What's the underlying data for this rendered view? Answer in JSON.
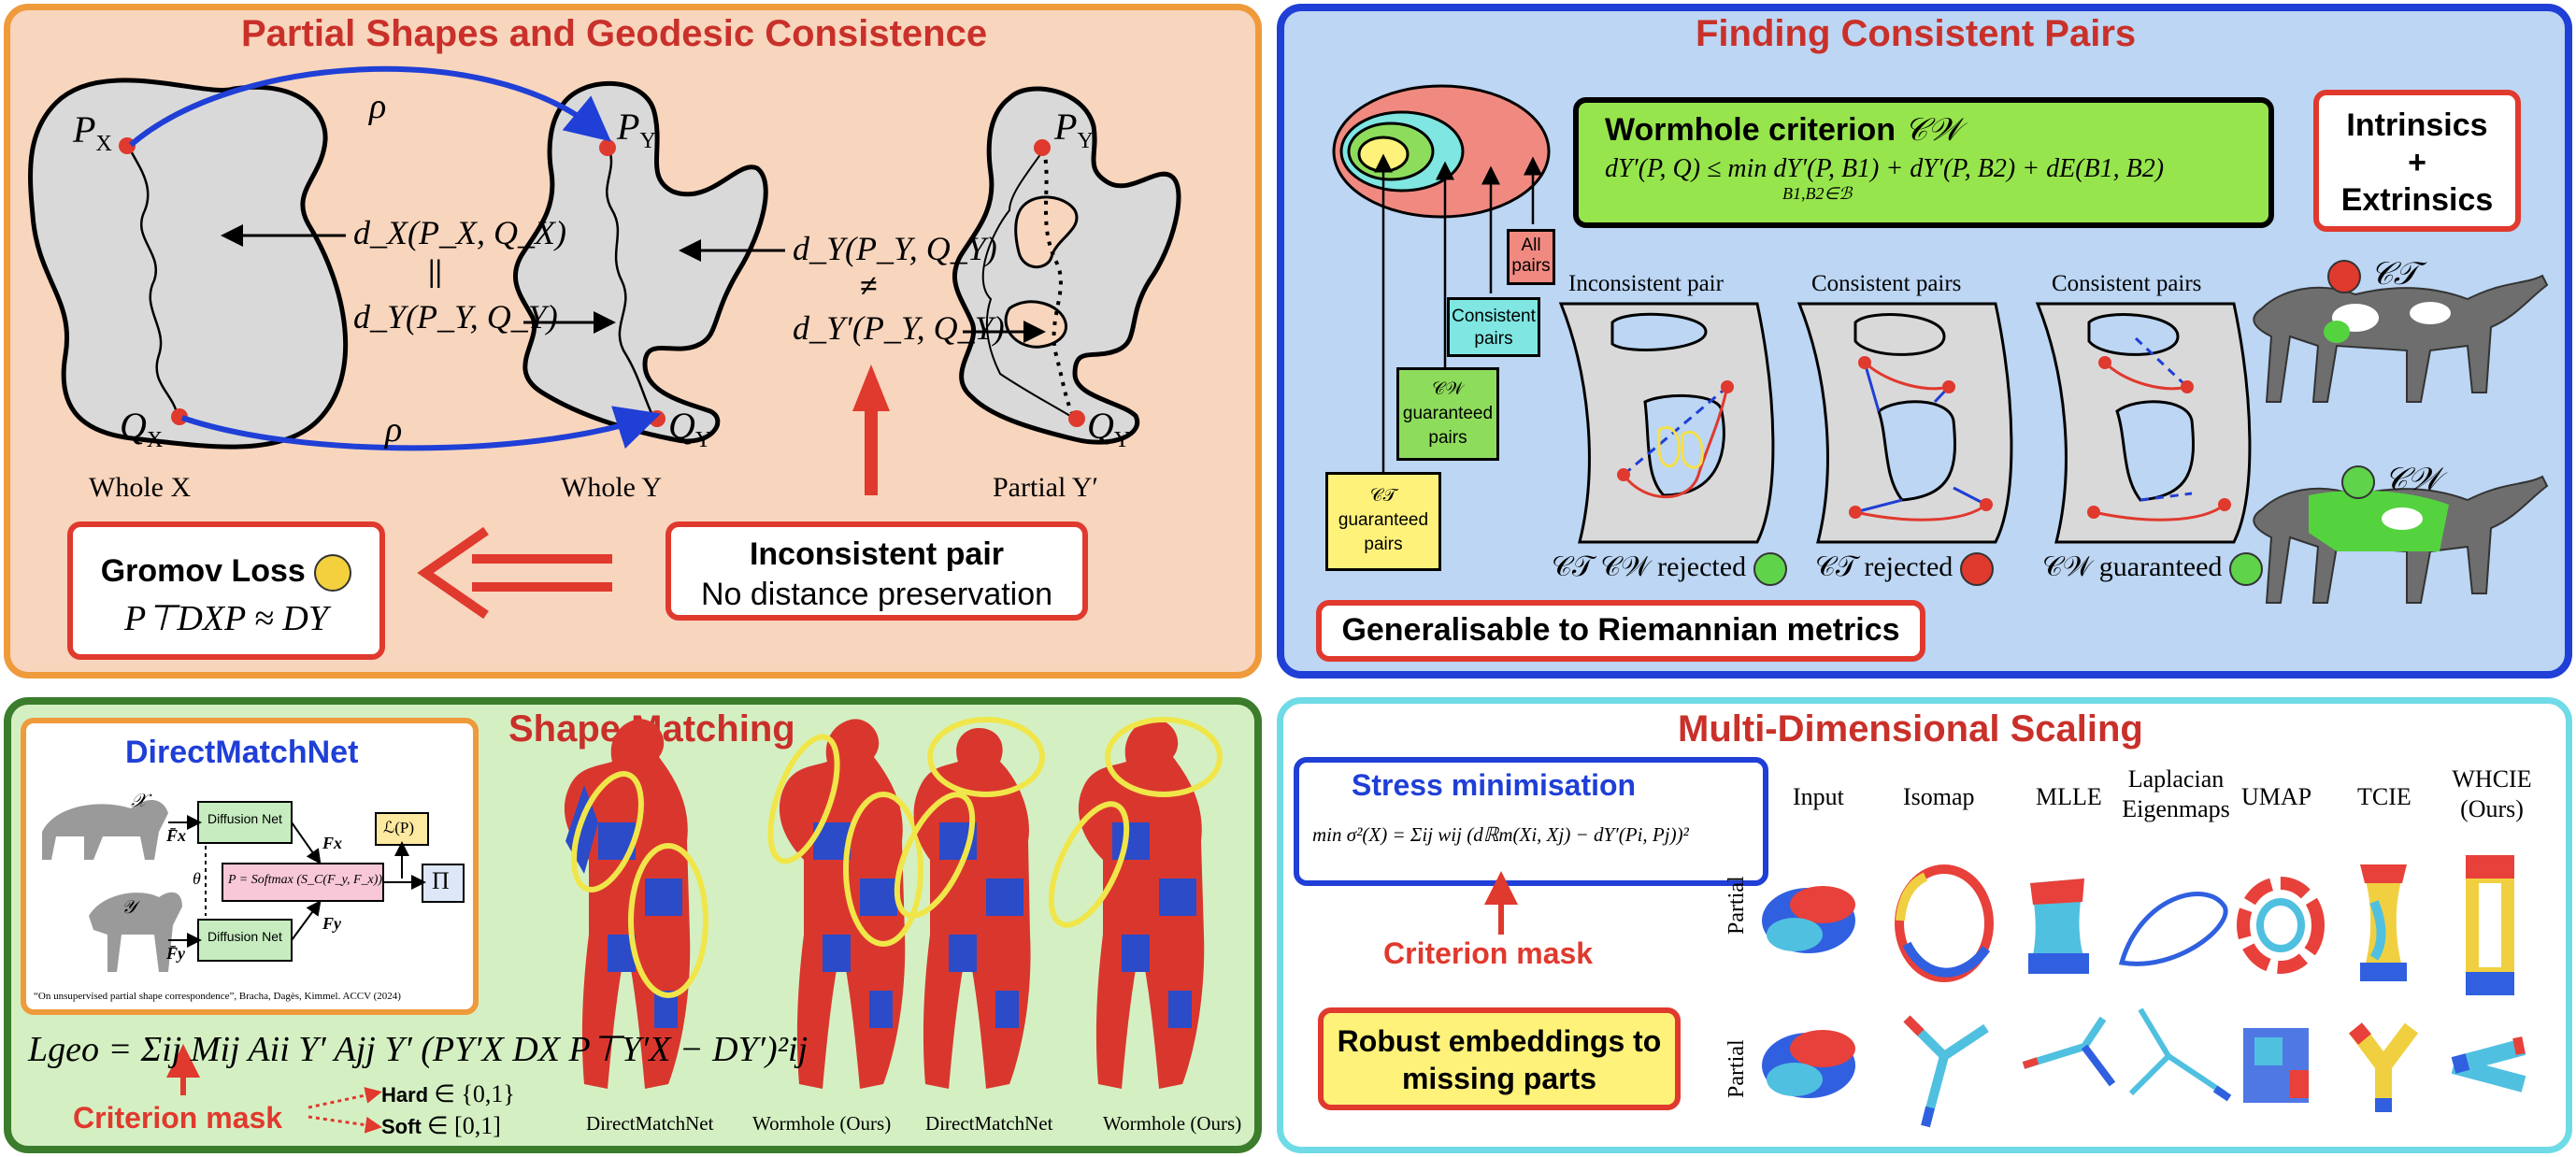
{
  "panels": {
    "partial_shapes": {
      "title": "Partial Shapes and Geodesic Consistence",
      "labels": {
        "px": "P",
        "px_sub": "X",
        "qx": "Q",
        "qx_sub": "X",
        "py": "P",
        "py_sub": "Y",
        "qy": "Q",
        "qy_sub": "Y",
        "py2": "P",
        "py2_sub": "Y",
        "qy2": "Q",
        "qy2_sub": "Y",
        "rho": "ρ",
        "dx": "d_X(P_X, Q_X)",
        "eq": "||",
        "dy": "d_Y(P_Y, Q_Y)",
        "dy_full": "d_Y(P_Y, Q_Y)",
        "neq": "≠",
        "dy_partial": "d_Y′(P_Y, Q_Y)",
        "whole_x": "Whole X",
        "whole_y": "Whole Y",
        "partial_y": "Partial Y′"
      },
      "inconsistent_box": {
        "title": "Inconsistent pair",
        "subtitle": "No distance preservation"
      },
      "gromov_box": {
        "title": "Gromov Loss",
        "formula": "P⊤DXP ≈ DY"
      }
    },
    "consistent_pairs": {
      "title": "Finding Consistent Pairs",
      "wormhole_box": {
        "title": "Wormhole criterion",
        "symbol": "𝒞𝒲",
        "formula": "dY′(P, Q) ≤ min dY′(P, B1) + dY′(P, B2) + dE(B1, B2)",
        "min_sub": "B1,B2∈ℬ"
      },
      "intrinsics_box": "Intrinsics\n+\nExtrinsics",
      "venn_labels": {
        "all": "All pairs",
        "consistent": "Consistent pairs",
        "cw_guaranteed": "𝒞𝒲 guaranteed pairs",
        "ct_guaranteed": "𝒞𝒯 guaranteed pairs"
      },
      "cases": [
        {
          "title": "Inconsistent pair",
          "caption": "𝒞𝒯  𝒞𝒲  rejected",
          "mood": "happy"
        },
        {
          "title": "Consistent pairs",
          "caption": "𝒞𝒯  rejected",
          "mood": "sad"
        },
        {
          "title": "Consistent pairs",
          "caption": "𝒞𝒲  guaranteed",
          "mood": "happy"
        }
      ],
      "cat_top_label": "𝒞𝒯",
      "cat_bottom_label": "𝒞𝒲",
      "generalisable": "Generalisable to Riemannian metrics"
    },
    "shape_matching": {
      "title": "Shape Matching",
      "inset_title": "DirectMatchNet",
      "inset_labels": {
        "diffusion1": "Diffusion Net",
        "diffusion2": "Diffusion Net",
        "softmax": "P = Softmax (S_C(F_y, F_x))",
        "loss": "ℒ(P)",
        "pi": "Π",
        "theta": "θ",
        "fx_in": "F̄x",
        "fy_in": "F̄y",
        "fx": "Fx",
        "fy": "Fy",
        "x": "𝒳",
        "y": "𝒴"
      },
      "citation": "“On unsupervised partial shape correspondence”, Bracha, Dagès, Kimmel. ACCV (2024)",
      "loss_formula": "Lgeo = Σij Mij Aii Y′ Ajj Y′ (PY′X DX P⊤Y′X − DY′)²ij",
      "criterion_mask": "Criterion mask",
      "hard": "Hard",
      "hard_range": "∈ {0,1}",
      "soft": "Soft",
      "soft_range": "∈ [0,1]",
      "captions": [
        "DirectMatchNet",
        "Wormhole (Ours)",
        "DirectMatchNet",
        "Wormhole (Ours)"
      ]
    },
    "mds": {
      "title": "Multi-Dimensional Scaling",
      "stress_box": {
        "title": "Stress minimisation",
        "formula": "min σ²(X) = Σij wij (dℝm(Xi, Xj) − dY′(Pi, Pj))²"
      },
      "criterion_mask": "Criterion mask",
      "robust_box": "Robust embeddings to missing parts",
      "columns": [
        "Input",
        "Isomap",
        "MLLE",
        "Laplacian Eigenmaps",
        "UMAP",
        "TCIE",
        "WHCIE (Ours)"
      ],
      "row_label": "Partial"
    }
  },
  "colors": {
    "panel1_bg": "#f8d5bd",
    "panel1_border": "#ef9a3b",
    "panel2_bg": "#bcd6f3",
    "panel2_border": "#1f3fd6",
    "panel3_bg": "#d4f0c3",
    "panel3_border": "#3b7d2c",
    "panel4_border": "#6fdbe6",
    "title_red": "#c9302a",
    "arrow_blue": "#1f3fd6",
    "arrow_red": "#e0392e"
  }
}
